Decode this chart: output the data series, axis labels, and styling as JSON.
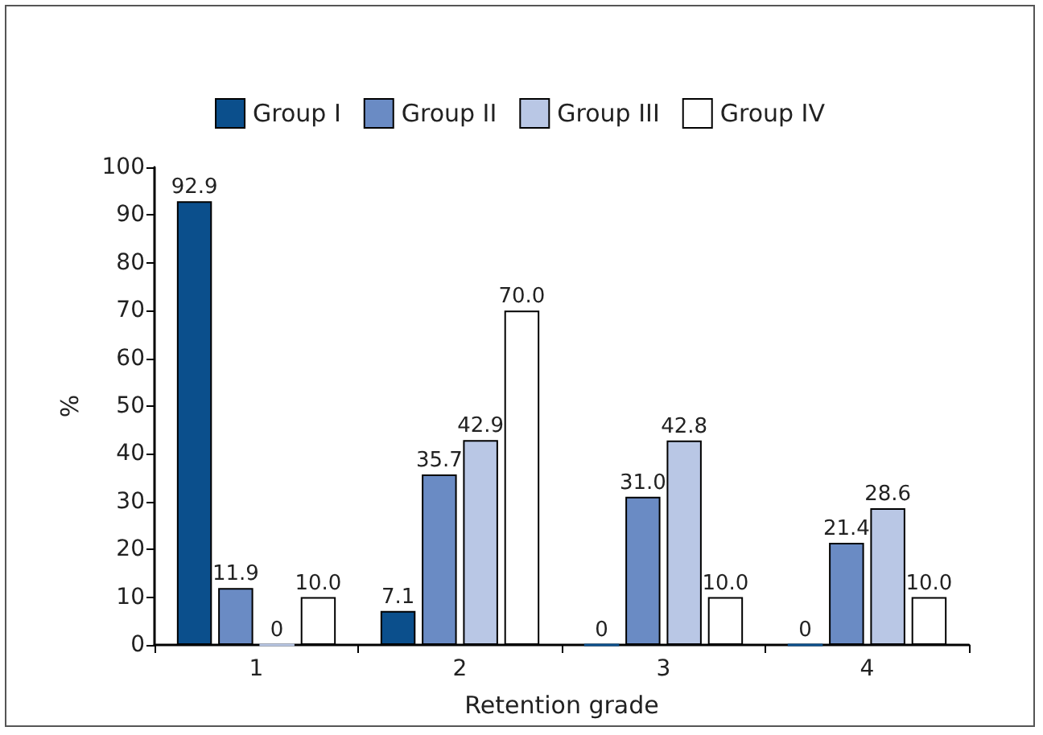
{
  "chart_data": {
    "type": "bar",
    "xlabel": "Retention grade",
    "ylabel": "%",
    "categories": [
      "1",
      "2",
      "3",
      "4"
    ],
    "series": [
      {
        "name": "Group I",
        "color": "#0b4f8c",
        "values": [
          92.9,
          7.1,
          0,
          0
        ],
        "value_labels": [
          "92.9",
          "7.1",
          "0",
          "0"
        ]
      },
      {
        "name": "Group II",
        "color": "#6a8bc4",
        "values": [
          11.9,
          35.7,
          31.0,
          21.4
        ],
        "value_labels": [
          "11.9",
          "35.7",
          "31.0",
          "21.4"
        ]
      },
      {
        "name": "Group III",
        "color": "#b9c7e5",
        "values": [
          0,
          42.9,
          42.8,
          28.6
        ],
        "value_labels": [
          "0",
          "42.9",
          "42.8",
          "28.6"
        ]
      },
      {
        "name": "Group IV",
        "color": "#ffffff",
        "values": [
          10.0,
          70.0,
          10.0,
          10.0
        ],
        "value_labels": [
          "10.0",
          "70.0",
          "10.0",
          "10.0"
        ]
      }
    ],
    "ylim": [
      0,
      100
    ],
    "yticks": [
      0,
      10,
      20,
      30,
      40,
      50,
      60,
      70,
      80,
      90,
      100
    ],
    "grid": false,
    "legend": "top"
  }
}
